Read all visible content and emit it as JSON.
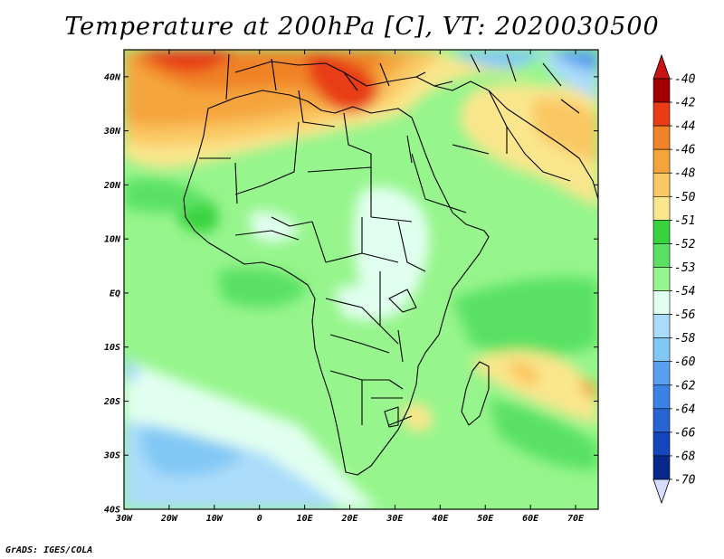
{
  "title": "Temperature at 200hPa [C], VT: 2020030500",
  "credit": "GrADS: IGES/COLA",
  "map": {
    "lon_range": [
      -30,
      75
    ],
    "lat_range": [
      -40,
      45
    ],
    "lat_ticks": [
      {
        "value": 40,
        "label": "40N"
      },
      {
        "value": 30,
        "label": "30N"
      },
      {
        "value": 20,
        "label": "20N"
      },
      {
        "value": 10,
        "label": "10N"
      },
      {
        "value": 0,
        "label": "EQ"
      },
      {
        "value": -10,
        "label": "10S"
      },
      {
        "value": -20,
        "label": "20S"
      },
      {
        "value": -30,
        "label": "30S"
      },
      {
        "value": -40,
        "label": "40S"
      }
    ],
    "lon_ticks": [
      {
        "value": -30,
        "label": "30W"
      },
      {
        "value": -20,
        "label": "20W"
      },
      {
        "value": -10,
        "label": "10W"
      },
      {
        "value": 0,
        "label": "0"
      },
      {
        "value": 10,
        "label": "10E"
      },
      {
        "value": 20,
        "label": "20E"
      },
      {
        "value": 30,
        "label": "30E"
      },
      {
        "value": 40,
        "label": "40E"
      },
      {
        "value": 50,
        "label": "50E"
      },
      {
        "value": 60,
        "label": "60E"
      },
      {
        "value": 70,
        "label": "70E"
      }
    ]
  },
  "colorbar": {
    "levels": [
      {
        "label": "-40",
        "color": "#a00000"
      },
      {
        "label": "-42",
        "color": "#e83c14"
      },
      {
        "label": "-44",
        "color": "#f08228"
      },
      {
        "label": "-46",
        "color": "#f5a53c"
      },
      {
        "label": "-48",
        "color": "#fac864"
      },
      {
        "label": "-50",
        "color": "#fae68c"
      },
      {
        "label": "-51",
        "color": "#37d23c"
      },
      {
        "label": "-52",
        "color": "#5ae164"
      },
      {
        "label": "-53",
        "color": "#96f58c"
      },
      {
        "label": "-54",
        "color": "#e1fff0"
      },
      {
        "label": "-56",
        "color": "#aadcfa"
      },
      {
        "label": "-58",
        "color": "#82c8f5"
      },
      {
        "label": "-60",
        "color": "#5aa0f0"
      },
      {
        "label": "-62",
        "color": "#3c82e6"
      },
      {
        "label": "-64",
        "color": "#2864d2"
      },
      {
        "label": "-66",
        "color": "#1446be"
      },
      {
        "label": "-68",
        "color": "#08288c"
      },
      {
        "label": "-70",
        "color": "#ccd0ff"
      }
    ],
    "top_arrow_color": "#c81414",
    "bottom_arrow_color": "#d8dcff"
  },
  "palette": {
    "light_green": "#96f58c",
    "mid_green": "#5ae164",
    "dark_green": "#37d23c",
    "pale_cyan": "#e1fff0",
    "sky": "#aadcfa",
    "blue": "#82c8f5",
    "yellow": "#fae68c",
    "orange_light": "#fac864",
    "orange": "#f5a53c",
    "orange_dark": "#f08228",
    "red": "#e83c14"
  }
}
